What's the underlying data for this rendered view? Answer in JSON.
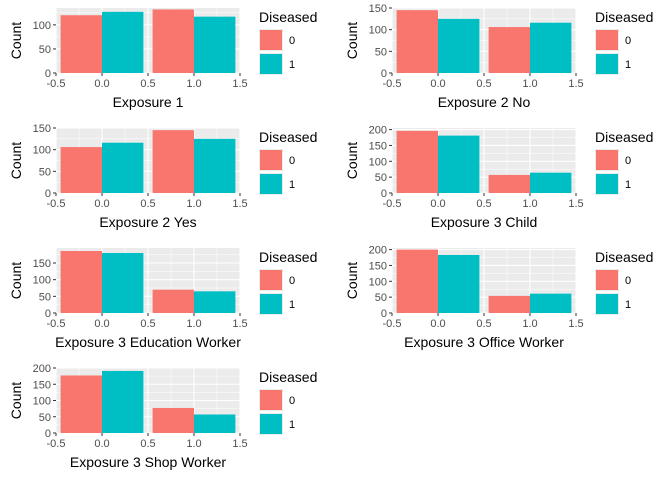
{
  "colors": {
    "series0": "#F8766D",
    "series1": "#00BFC4",
    "panel": "#EBEBEB",
    "grid": "#FFFFFF"
  },
  "chart_data": [
    {
      "type": "bar",
      "xlabel": "Exposure 1",
      "ylabel": "Count",
      "xlim": [
        -0.5,
        1.5
      ],
      "ylim": [
        0,
        135
      ],
      "x_ticks": [
        "-0.5",
        "0.0",
        "0.5",
        "1.0",
        "1.5"
      ],
      "y_ticks": [
        0,
        50,
        100
      ],
      "categories": [
        0,
        1
      ],
      "series": [
        {
          "name": "0",
          "values": [
            120,
            132
          ]
        },
        {
          "name": "1",
          "values": [
            127,
            117
          ]
        }
      ],
      "legend": {
        "title": "Diseased",
        "labels": [
          "0",
          "1"
        ],
        "position": "right"
      },
      "grid": true
    },
    {
      "type": "bar",
      "xlabel": "Exposure 2 No",
      "ylabel": "Count",
      "xlim": [
        -0.5,
        1.5
      ],
      "ylim": [
        0,
        150
      ],
      "x_ticks": [
        "-0.5",
        "0.0",
        "0.5",
        "1.0",
        "1.5"
      ],
      "y_ticks": [
        0,
        50,
        100,
        150
      ],
      "categories": [
        0,
        1
      ],
      "series": [
        {
          "name": "0",
          "values": [
            145,
            106
          ]
        },
        {
          "name": "1",
          "values": [
            125,
            116
          ]
        }
      ],
      "legend": {
        "title": "Diseased",
        "labels": [
          "0",
          "1"
        ],
        "position": "right"
      },
      "grid": true
    },
    {
      "type": "bar",
      "xlabel": "Exposure 2 Yes",
      "ylabel": "Count",
      "xlim": [
        -0.5,
        1.5
      ],
      "ylim": [
        0,
        150
      ],
      "x_ticks": [
        "-0.5",
        "0.0",
        "0.5",
        "1.0",
        "1.5"
      ],
      "y_ticks": [
        0,
        50,
        100,
        150
      ],
      "categories": [
        0,
        1
      ],
      "series": [
        {
          "name": "0",
          "values": [
            106,
            145
          ]
        },
        {
          "name": "1",
          "values": [
            116,
            125
          ]
        }
      ],
      "legend": {
        "title": "Diseased",
        "labels": [
          "0",
          "1"
        ],
        "position": "right"
      },
      "grid": true
    },
    {
      "type": "bar",
      "xlabel": "Exposure 3 Child",
      "ylabel": "Count",
      "xlim": [
        -0.5,
        1.5
      ],
      "ylim": [
        0,
        205
      ],
      "x_ticks": [
        "-0.5",
        "0.0",
        "0.5",
        "1.0",
        "1.5"
      ],
      "y_ticks": [
        0,
        50,
        100,
        150,
        200
      ],
      "categories": [
        0,
        1
      ],
      "series": [
        {
          "name": "0",
          "values": [
            196,
            57
          ]
        },
        {
          "name": "1",
          "values": [
            181,
            64
          ]
        }
      ],
      "legend": {
        "title": "Diseased",
        "labels": [
          "0",
          "1"
        ],
        "position": "right"
      },
      "grid": true
    },
    {
      "type": "bar",
      "xlabel": "Exposure 3 Education Worker",
      "ylabel": "Count",
      "xlim": [
        -0.5,
        1.5
      ],
      "ylim": [
        0,
        195
      ],
      "x_ticks": [
        "-0.5",
        "0.0",
        "0.5",
        "1.0",
        "1.5"
      ],
      "y_ticks": [
        0,
        50,
        100,
        150
      ],
      "categories": [
        0,
        1
      ],
      "series": [
        {
          "name": "0",
          "values": [
            186,
            70
          ]
        },
        {
          "name": "1",
          "values": [
            180,
            65
          ]
        }
      ],
      "legend": {
        "title": "Diseased",
        "labels": [
          "0",
          "1"
        ],
        "position": "right"
      },
      "grid": true
    },
    {
      "type": "bar",
      "xlabel": "Exposure 3 Office Worker",
      "ylabel": "Count",
      "xlim": [
        -0.5,
        1.5
      ],
      "ylim": [
        0,
        205
      ],
      "x_ticks": [
        "-0.5",
        "0.0",
        "0.5",
        "1.0",
        "1.5"
      ],
      "y_ticks": [
        0,
        50,
        100,
        150,
        200
      ],
      "categories": [
        0,
        1
      ],
      "series": [
        {
          "name": "0",
          "values": [
            200,
            54
          ]
        },
        {
          "name": "1",
          "values": [
            183,
            61
          ]
        }
      ],
      "legend": {
        "title": "Diseased",
        "labels": [
          "0",
          "1"
        ],
        "position": "right"
      },
      "grid": true
    },
    {
      "type": "bar",
      "xlabel": "Exposure 3 Shop Worker",
      "ylabel": "Count",
      "xlim": [
        -0.5,
        1.5
      ],
      "ylim": [
        0,
        200
      ],
      "x_ticks": [
        "-0.5",
        "0.0",
        "0.5",
        "1.0",
        "1.5"
      ],
      "y_ticks": [
        0,
        50,
        100,
        150,
        200
      ],
      "categories": [
        0,
        1
      ],
      "series": [
        {
          "name": "0",
          "values": [
            177,
            77
          ]
        },
        {
          "name": "1",
          "values": [
            191,
            57
          ]
        }
      ],
      "legend": {
        "title": "Diseased",
        "labels": [
          "0",
          "1"
        ],
        "position": "right"
      },
      "grid": true
    }
  ]
}
